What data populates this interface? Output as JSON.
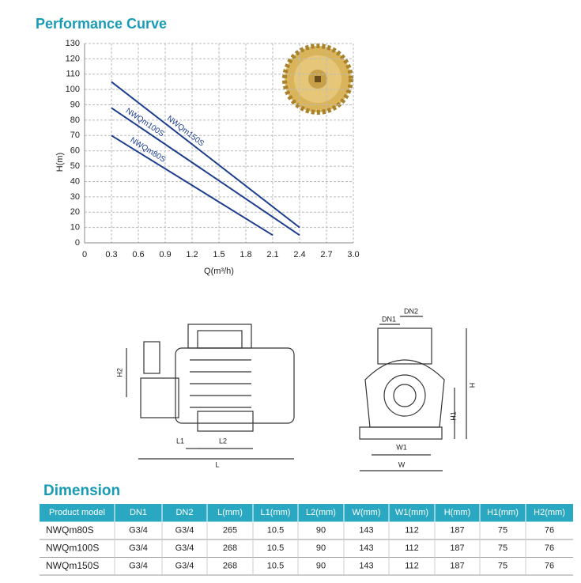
{
  "chart_data": {
    "type": "line",
    "title": "Performance Curve",
    "x_label": "Q(m³/h)",
    "y_label": "H(m)",
    "xlim": [
      0,
      3
    ],
    "xticks": [
      0,
      0.3,
      0.6,
      0.9,
      1.2,
      1.5,
      1.8,
      2.1,
      2.4,
      2.7,
      {
        "value": 3,
        "label": "3.0"
      }
    ],
    "ylim": [
      0,
      130
    ],
    "yticks": [
      0,
      10,
      20,
      30,
      40,
      50,
      60,
      70,
      80,
      90,
      100,
      110,
      120,
      130
    ],
    "grid": true,
    "series": [
      {
        "name": "NWQm80S",
        "color": "#1d3d8f",
        "x": [
          0.3,
          2.1
        ],
        "values": [
          70,
          5
        ]
      },
      {
        "name": "NWQm100S",
        "color": "#1d3d8f",
        "x": [
          0.3,
          2.4
        ],
        "values": [
          88,
          5
        ]
      },
      {
        "name": "NWQm150S",
        "color": "#1d3d8f",
        "x": [
          0.3,
          2.4
        ],
        "values": [
          105,
          10
        ]
      }
    ]
  },
  "drawings": {
    "side_labels": [
      "H2",
      "L1",
      "L2",
      "L"
    ],
    "front_labels": [
      "DN1",
      "DN2",
      "H",
      "H1",
      "W1",
      "W"
    ]
  },
  "dimension": {
    "title": "Dimension",
    "header": [
      "Product model",
      "DN1",
      "DN2",
      "L(mm)",
      "L1(mm)",
      "L2(mm)",
      "W(mm)",
      "W1(mm)",
      "H(mm)",
      "H1(mm)",
      "H2(mm)"
    ],
    "rows": [
      [
        "NWQm80S",
        "G3/4",
        "G3/4",
        "265",
        "10.5",
        "90",
        "143",
        "112",
        "187",
        "75",
        "76"
      ],
      [
        "NWQm100S",
        "G3/4",
        "G3/4",
        "268",
        "10.5",
        "90",
        "143",
        "112",
        "187",
        "75",
        "76"
      ],
      [
        "NWQm150S",
        "G3/4",
        "G3/4",
        "268",
        "10.5",
        "90",
        "143",
        "112",
        "187",
        "75",
        "76"
      ]
    ]
  }
}
